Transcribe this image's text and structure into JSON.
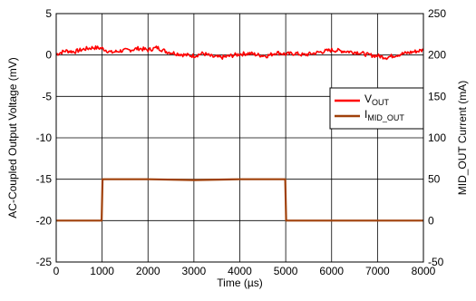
{
  "chart_data": {
    "type": "line",
    "xlabel": "Time (µs)",
    "ylabel_left": "AC-Coupled Output Voltage (mV)",
    "ylabel_right": "MID_OUT Current (mA)",
    "xlim": [
      0,
      8000
    ],
    "ylim_left": [
      -25,
      5
    ],
    "ylim_right": [
      -50,
      250
    ],
    "x_ticks": [
      "0",
      "1000",
      "2000",
      "3000",
      "4000",
      "5000",
      "6000",
      "7000",
      "8000"
    ],
    "y_left_ticks": [
      "5",
      "0",
      "-5",
      "-10",
      "-15",
      "-20",
      "-25"
    ],
    "y_right_ticks": [
      "250",
      "200",
      "150",
      "100",
      "50",
      "0",
      "-50"
    ],
    "grid": true,
    "legend_position": "right",
    "series": [
      {
        "name": "V",
        "name_sub": "OUT",
        "axis": "left",
        "color": "#ff0000",
        "x": [
          0,
          200,
          400,
          600,
          800,
          1000,
          1200,
          1400,
          1600,
          1800,
          2000,
          2200,
          2400,
          2600,
          2800,
          3000,
          3200,
          3400,
          3600,
          3800,
          4000,
          4200,
          4400,
          4600,
          4800,
          5000,
          5200,
          5400,
          5600,
          5800,
          6000,
          6200,
          6400,
          6600,
          6800,
          7000,
          7200,
          7400,
          7600,
          7800,
          8000
        ],
        "values": [
          0.1,
          0.5,
          0.4,
          0.7,
          0.9,
          0.8,
          0.3,
          0.5,
          0.6,
          0.8,
          0.6,
          0.9,
          0.4,
          0.2,
          0.0,
          -0.1,
          0.2,
          -0.2,
          -0.3,
          -0.1,
          0.1,
          0.2,
          0.0,
          -0.1,
          0.3,
          0.1,
          0.2,
          0.0,
          0.2,
          0.4,
          0.6,
          0.5,
          0.4,
          0.3,
          0.0,
          -0.1,
          -0.3,
          0.0,
          0.2,
          0.4,
          0.6
        ]
      },
      {
        "name": "I",
        "name_sub": "MID_OUT",
        "axis": "right",
        "color": "#a0400a",
        "x": [
          0,
          990,
          1010,
          2000,
          3000,
          4000,
          4990,
          5010,
          6000,
          7000,
          8000
        ],
        "values": [
          0,
          0,
          50,
          50,
          49,
          50,
          50,
          0,
          0,
          0,
          0
        ]
      }
    ]
  }
}
